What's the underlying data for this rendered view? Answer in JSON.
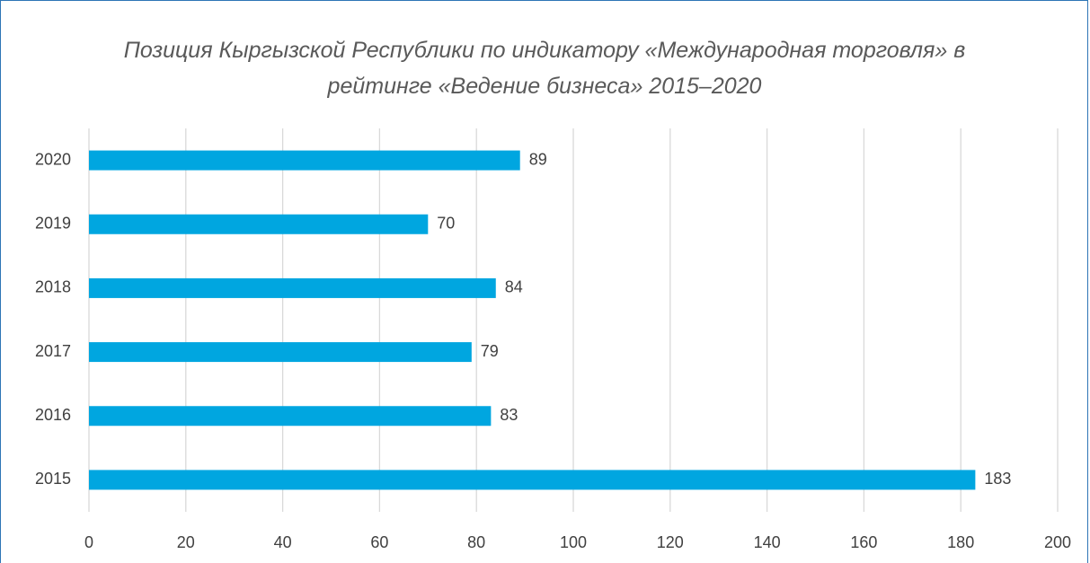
{
  "chart_data": {
    "type": "bar",
    "orientation": "horizontal",
    "title": "Позиция Кыргызской Республики по индикатору «Международная торговля» в рейтинге «Ведение бизнеса» 2015–2020",
    "categories": [
      "2020",
      "2019",
      "2018",
      "2017",
      "2016",
      "2015"
    ],
    "values": [
      89,
      70,
      84,
      79,
      83,
      183
    ],
    "color": "#00a6e0",
    "xlim": [
      0,
      200
    ],
    "xticks": [
      0,
      20,
      40,
      60,
      80,
      100,
      120,
      140,
      160,
      180,
      200
    ],
    "grid": true
  }
}
